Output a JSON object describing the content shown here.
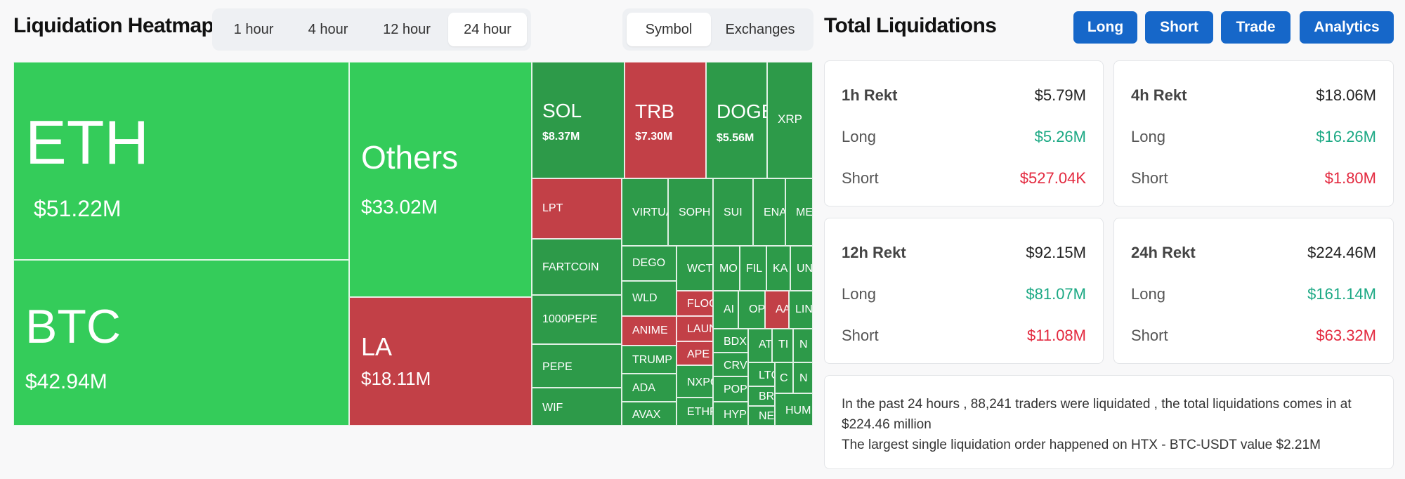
{
  "heatmap": {
    "title": "Liquidation Heatmap",
    "time_tabs": [
      "1 hour",
      "4 hour",
      "12 hour",
      "24 hour"
    ],
    "active_time_tab": "24 hour",
    "view_tabs": [
      "Symbol",
      "Exchanges"
    ],
    "active_view_tab": "Symbol",
    "tiles": [
      {
        "symbol": "ETH",
        "value": "$51.22M",
        "color": "#34cc5a"
      },
      {
        "symbol": "BTC",
        "value": "$42.94M",
        "color": "#34cc5a"
      },
      {
        "symbol": "Others",
        "value": "$33.02M",
        "color": "#34cc5a"
      },
      {
        "symbol": "LA",
        "value": "$18.11M",
        "color": "#c24047"
      },
      {
        "symbol": "SOL",
        "value": "$8.37M",
        "color": "#2d9a49"
      },
      {
        "symbol": "TRB",
        "value": "$7.30M",
        "color": "#c24047"
      },
      {
        "symbol": "DOGE",
        "value": "$5.56M",
        "color": "#2d9a49"
      },
      {
        "symbol": "XRP",
        "value": "",
        "color": "#2d9a49"
      },
      {
        "symbol": "LPT",
        "value": "",
        "color": "#c24047"
      },
      {
        "symbol": "VIRTUAL",
        "value": "",
        "color": "#2d9a49"
      },
      {
        "symbol": "SOPH",
        "value": "",
        "color": "#2d9a49"
      },
      {
        "symbol": "SUI",
        "value": "",
        "color": "#2d9a49"
      },
      {
        "symbol": "ENA",
        "value": "",
        "color": "#2d9a49"
      },
      {
        "symbol": "ME",
        "value": "",
        "color": "#2d9a49"
      },
      {
        "symbol": "FARTCOIN",
        "value": "",
        "color": "#2d9a49"
      },
      {
        "symbol": "1000PEPE",
        "value": "",
        "color": "#2d9a49"
      },
      {
        "symbol": "PEPE",
        "value": "",
        "color": "#2d9a49"
      },
      {
        "symbol": "WIF",
        "value": "",
        "color": "#2d9a49"
      },
      {
        "symbol": "DEGO",
        "value": "",
        "color": "#2d9a49"
      },
      {
        "symbol": "WLD",
        "value": "",
        "color": "#2d9a49"
      },
      {
        "symbol": "ANIME",
        "value": "",
        "color": "#c24047"
      },
      {
        "symbol": "TRUMP",
        "value": "",
        "color": "#2d9a49"
      },
      {
        "symbol": "ADA",
        "value": "",
        "color": "#2d9a49"
      },
      {
        "symbol": "AVAX",
        "value": "",
        "color": "#2d9a49"
      },
      {
        "symbol": "WCT",
        "value": "",
        "color": "#2d9a49"
      },
      {
        "symbol": "MO",
        "value": "",
        "color": "#2d9a49"
      },
      {
        "symbol": "FIL",
        "value": "",
        "color": "#2d9a49"
      },
      {
        "symbol": "KA",
        "value": "",
        "color": "#2d9a49"
      },
      {
        "symbol": "UN",
        "value": "",
        "color": "#2d9a49"
      },
      {
        "symbol": "FLOC",
        "value": "",
        "color": "#c24047"
      },
      {
        "symbol": "AI",
        "value": "",
        "color": "#2d9a49"
      },
      {
        "symbol": "OP",
        "value": "",
        "color": "#2d9a49"
      },
      {
        "symbol": "AA",
        "value": "",
        "color": "#c24047"
      },
      {
        "symbol": "LIN",
        "value": "",
        "color": "#2d9a49"
      },
      {
        "symbol": "LAUN",
        "value": "",
        "color": "#c24047"
      },
      {
        "symbol": "BDX",
        "value": "",
        "color": "#2d9a49"
      },
      {
        "symbol": "AT",
        "value": "",
        "color": "#2d9a49"
      },
      {
        "symbol": "TI",
        "value": "",
        "color": "#2d9a49"
      },
      {
        "symbol": "N",
        "value": "",
        "color": "#2d9a49"
      },
      {
        "symbol": "APE",
        "value": "",
        "color": "#c24047"
      },
      {
        "symbol": "CRV",
        "value": "",
        "color": "#2d9a49"
      },
      {
        "symbol": "LTC",
        "value": "",
        "color": "#2d9a49"
      },
      {
        "symbol": "C",
        "value": "",
        "color": "#2d9a49"
      },
      {
        "symbol": "N",
        "value": "",
        "color": "#2d9a49"
      },
      {
        "symbol": "NXPC",
        "value": "",
        "color": "#2d9a49"
      },
      {
        "symbol": "POP",
        "value": "",
        "color": "#2d9a49"
      },
      {
        "symbol": "BRE",
        "value": "",
        "color": "#2d9a49"
      },
      {
        "symbol": "ETHFI",
        "value": "",
        "color": "#2d9a49"
      },
      {
        "symbol": "HYP",
        "value": "",
        "color": "#2d9a49"
      },
      {
        "symbol": "NEA",
        "value": "",
        "color": "#2d9a49"
      },
      {
        "symbol": "HUM",
        "value": "",
        "color": "#2d9a49"
      }
    ]
  },
  "totals": {
    "title": "Total Liquidations",
    "buttons": [
      "Long",
      "Short",
      "Trade",
      "Analytics"
    ],
    "cards": [
      {
        "period": "1h Rekt",
        "total": "$5.79M",
        "long_label": "Long",
        "long": "$5.26M",
        "short_label": "Short",
        "short": "$527.04K"
      },
      {
        "period": "4h Rekt",
        "total": "$18.06M",
        "long_label": "Long",
        "long": "$16.26M",
        "short_label": "Short",
        "short": "$1.80M"
      },
      {
        "period": "12h Rekt",
        "total": "$92.15M",
        "long_label": "Long",
        "long": "$81.07M",
        "short_label": "Short",
        "short": "$11.08M"
      },
      {
        "period": "24h Rekt",
        "total": "$224.46M",
        "long_label": "Long",
        "long": "$161.14M",
        "short_label": "Short",
        "short": "$63.32M"
      }
    ],
    "summary_line1": "In the past 24 hours , 88,241 traders were liquidated , the total liquidations comes in at $224.46 million",
    "summary_line2": "The largest single liquidation order happened on HTX - BTC-USDT value $2.21M",
    "long_color": "#1aa883",
    "short_color": "#e3283e"
  }
}
